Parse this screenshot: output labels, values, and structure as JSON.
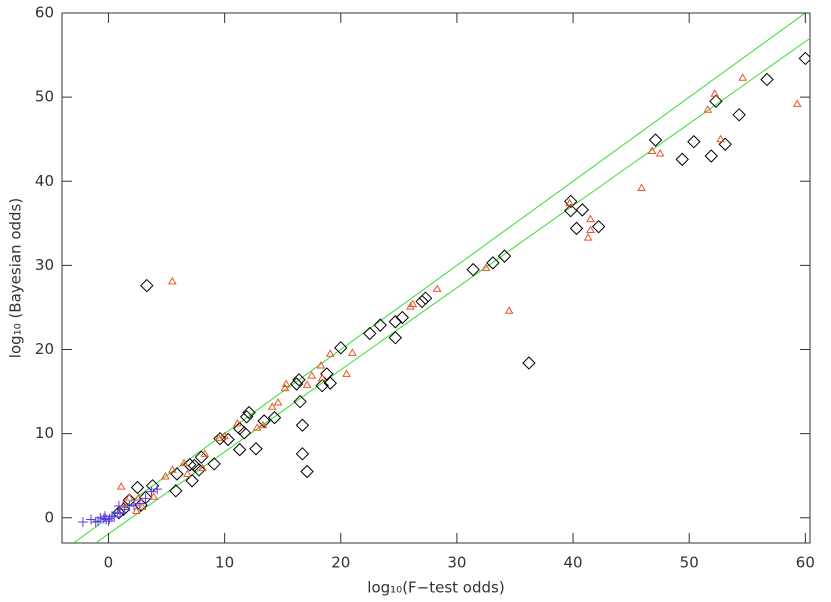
{
  "chart_data": {
    "type": "scatter",
    "xlabel": "log₁₀(F−test odds)",
    "ylabel": "log₁₀ (Bayesian odds)",
    "xlim": [
      -4,
      60.4
    ],
    "ylim": [
      -3,
      60
    ],
    "xticks": [
      0,
      10,
      20,
      30,
      40,
      50,
      60
    ],
    "yticks": [
      0,
      10,
      20,
      30,
      40,
      50,
      60
    ],
    "lines": [
      {
        "color": "#33dd33",
        "x": [
          -3,
          60.4
        ],
        "y": [
          -3,
          60.4
        ]
      },
      {
        "color": "#33dd33",
        "x": [
          -1.1,
          60.4
        ],
        "y": [
          -3,
          57
        ]
      }
    ],
    "series": [
      {
        "marker": "diamond",
        "color": "#000000",
        "x": [
          3.3,
          36.2,
          16.7,
          16.7,
          17.1,
          56.7,
          60,
          54.3,
          52.3,
          53.1,
          51.9,
          50.4,
          49.4,
          47.1,
          39.8,
          39.8,
          40.3,
          40.8,
          42.2,
          34.1,
          33.1,
          31.4,
          27.3,
          27.0,
          25.3,
          24.7,
          24.7,
          23.4,
          22.5,
          20.0,
          18.8,
          19.1,
          18.4,
          16.4,
          16.2,
          16.5,
          14.3,
          13.4,
          12.1,
          11.9,
          11.7,
          11.3,
          11.3,
          12.7,
          10.3,
          9.6,
          9.1,
          8.0,
          7.8,
          7.4,
          7.0,
          7.2,
          5.9,
          5.8,
          3.8,
          2.5,
          3.2,
          2.8,
          1.8,
          1.3,
          0.9
        ],
        "values": [
          27.6,
          18.4,
          11.0,
          7.6,
          5.5,
          52.1,
          54.6,
          47.9,
          49.5,
          44.4,
          43.0,
          44.7,
          42.6,
          44.9,
          37.6,
          36.5,
          34.4,
          36.6,
          34.6,
          31.1,
          30.3,
          29.5,
          26.1,
          25.7,
          23.8,
          23.3,
          21.4,
          22.9,
          21.9,
          20.2,
          17.1,
          16.0,
          15.7,
          16.4,
          15.9,
          13.8,
          11.9,
          11.5,
          12.5,
          12.0,
          10.1,
          10.6,
          8.1,
          8.2,
          9.3,
          9.4,
          6.4,
          7.2,
          5.7,
          6.2,
          6.3,
          4.4,
          5.2,
          3.2,
          3.8,
          3.6,
          2.4,
          1.5,
          2.1,
          1.0,
          0.6
        ]
      },
      {
        "marker": "triangle",
        "color": "#e8552a",
        "x": [
          5.5,
          34.5,
          52.2,
          54.6,
          59.3,
          51.6,
          52.7,
          46.8,
          47.5,
          45.9,
          39.7,
          41.5,
          41.3,
          41.5,
          32.5,
          28.3,
          26.2,
          26.0,
          21.0,
          20.5,
          19.1,
          18.4,
          18.3,
          17.5,
          17.1,
          15.3,
          15.2,
          14.6,
          14.1,
          13.3,
          12.8,
          11.1,
          10.0,
          9.5,
          8.3,
          8.1,
          6.5,
          5.5,
          4.9,
          3.9,
          2.6,
          1.1,
          1.3,
          1.8,
          2.4,
          2.9,
          6.8
        ],
        "values": [
          28.1,
          24.6,
          50.4,
          52.3,
          49.2,
          48.5,
          45.0,
          43.6,
          43.3,
          39.2,
          37.4,
          34.2,
          33.3,
          35.5,
          29.7,
          27.2,
          25.4,
          25.1,
          19.6,
          17.1,
          19.5,
          16.6,
          18.1,
          16.9,
          15.8,
          15.9,
          15.4,
          13.7,
          13.2,
          11.0,
          10.7,
          11.2,
          9.7,
          9.5,
          7.6,
          5.9,
          6.5,
          5.7,
          4.9,
          2.5,
          2.4,
          3.7,
          1.5,
          2.4,
          0.8,
          1.3,
          5.2
        ]
      },
      {
        "marker": "plus",
        "color": "#5b3ee0",
        "x": [
          -2.2,
          -1.5,
          -0.9,
          -0.7,
          -0.4,
          -0.2,
          0.1,
          0.3,
          0.5,
          0.8,
          1.0,
          1.4,
          1.8,
          2.2,
          2.7,
          3.2,
          3.7,
          4.2,
          0.9,
          -0.3,
          0,
          -1.1
        ],
        "values": [
          -0.5,
          -0.2,
          -0.4,
          0,
          -0.1,
          -0.2,
          -0.1,
          0.2,
          0.1,
          0.5,
          0.6,
          1.0,
          1.4,
          1.5,
          1.7,
          2.3,
          3.1,
          3.4,
          1.4,
          0.2,
          -0.4,
          -0.5
        ]
      }
    ]
  }
}
